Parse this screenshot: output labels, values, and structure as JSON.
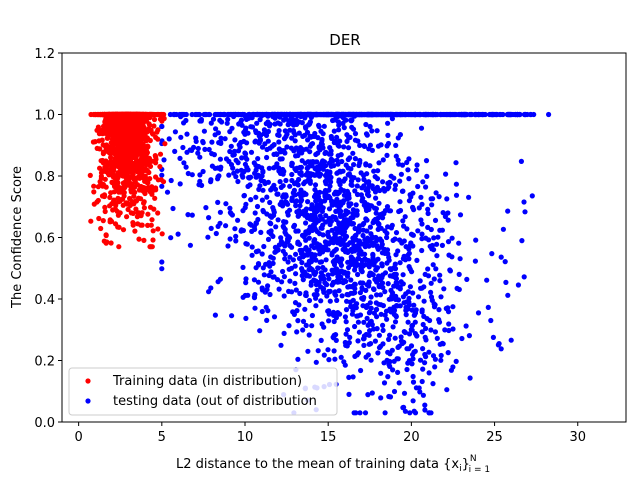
{
  "chart_data": {
    "type": "scatter",
    "title": "DER",
    "xlabel_prefix": "L2 distance to the mean of training data ",
    "xlabel_set": "{x",
    "xlabel_sub_i": "i",
    "xlabel_close": "}",
    "xlabel_sup": "N",
    "xlabel_sub_range": "i = 1",
    "ylabel": "The Confidence Score",
    "xlim": [
      -1.0,
      32.9
    ],
    "ylim": [
      0.0,
      1.2
    ],
    "xticks": [
      0,
      5,
      10,
      15,
      20,
      25,
      30
    ],
    "yticks": [
      0.0,
      0.2,
      0.4,
      0.6,
      0.8,
      1.0,
      1.2
    ],
    "legend_position": "lower-left",
    "series": [
      {
        "name": "Training data (in distribution)",
        "color": "#ff0000",
        "distribution": {
          "x_mean": 2.9,
          "x_sd": 0.8,
          "x_range": [
            0.7,
            5.8
          ],
          "y_range": [
            0.57,
            1.0
          ],
          "y_at_one_fraction": 0.35,
          "point_count": 1600
        }
      },
      {
        "name": "testing data (out of distribution",
        "color": "#0000ff",
        "distribution": {
          "x_mean": 15.5,
          "x_sd": 3.6,
          "x_range": [
            5.0,
            31.4
          ],
          "y_range": [
            0.03,
            1.0
          ],
          "y_at_one_fraction": 0.28,
          "point_count": 2600
        }
      }
    ]
  }
}
